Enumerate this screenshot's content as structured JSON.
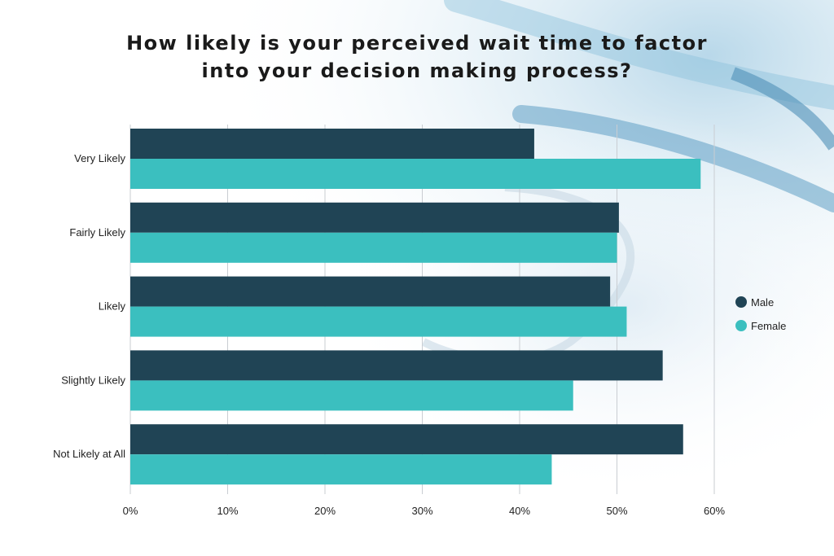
{
  "chart_data": {
    "type": "bar",
    "orientation": "horizontal",
    "title_lines": [
      "How likely is your perceived wait time to factor",
      "into your decision making process?"
    ],
    "categories": [
      "Very Likely",
      "Fairly Likely",
      "Likely",
      "Slightly Likely",
      "Not Likely at All"
    ],
    "series": [
      {
        "name": "Male",
        "color": "#204455",
        "values": [
          41.5,
          50.2,
          49.3,
          54.7,
          56.8
        ]
      },
      {
        "name": "Female",
        "color": "#3bbfbf",
        "values": [
          58.6,
          50.0,
          51.0,
          45.5,
          43.3
        ]
      }
    ],
    "xlim": [
      0,
      60
    ],
    "xticks": [
      0,
      10,
      20,
      30,
      40,
      50,
      60
    ],
    "tick_suffix": "%",
    "grid": "vertical",
    "legend_position": "right"
  }
}
